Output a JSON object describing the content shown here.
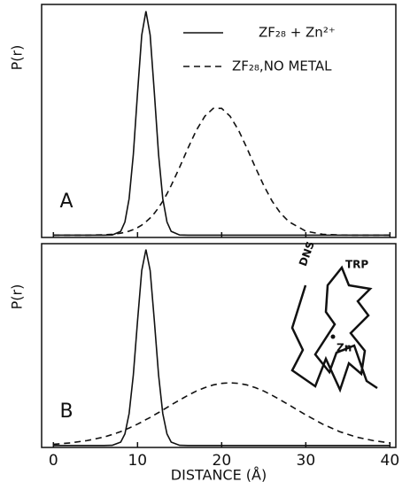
{
  "chart_data": [
    {
      "type": "line",
      "y_label": "P(r)",
      "panel_label": "A",
      "legend": "upper right",
      "x": [
        0,
        2,
        4,
        6,
        7,
        8,
        8.5,
        9,
        9.5,
        10,
        10.5,
        11,
        11.5,
        12,
        12.5,
        13,
        13.5,
        14,
        15,
        16,
        17,
        18,
        19,
        20,
        21,
        22,
        23,
        24,
        25,
        26,
        27,
        28,
        30,
        32,
        34,
        36,
        38,
        40
      ],
      "series": [
        {
          "name": "ZF₂₈ + Zn²⁺",
          "color": "#111111",
          "linestyle": "solid",
          "values": [
            0,
            0,
            0,
            0,
            0.001,
            0.017,
            0.059,
            0.163,
            0.36,
            0.635,
            0.893,
            1,
            0.893,
            0.635,
            0.36,
            0.163,
            0.059,
            0.017,
            0.001,
            0,
            0,
            0,
            0,
            0,
            0,
            0,
            0,
            0,
            0,
            0,
            0,
            0,
            0,
            0,
            0,
            0,
            0,
            0
          ]
        },
        {
          "name": "ZF₂₈,NO METAL",
          "color": "#111111",
          "linestyle": "dashed",
          "values": [
            0,
            0,
            0,
            0.002,
            0.004,
            0.009,
            0.013,
            0.018,
            0.025,
            0.034,
            0.045,
            0.06,
            0.077,
            0.098,
            0.123,
            0.152,
            0.185,
            0.222,
            0.303,
            0.389,
            0.469,
            0.531,
            0.566,
            0.566,
            0.531,
            0.469,
            0.389,
            0.303,
            0.222,
            0.152,
            0.098,
            0.06,
            0.018,
            0.004,
            0.001,
            0,
            0,
            0
          ]
        }
      ],
      "xlim": [
        -1.4,
        40.7
      ],
      "ylim": [
        -0.01,
        1.03
      ],
      "xticks": [
        0,
        10,
        20,
        30,
        40
      ]
    },
    {
      "type": "line",
      "y_label": "P(r)",
      "panel_label": "B",
      "x_label": "DISTANCE (Å)",
      "annotations": [
        "DNS",
        "TRP",
        "Zn"
      ],
      "x": [
        0,
        2,
        4,
        6,
        7,
        8,
        8.5,
        9,
        9.5,
        10,
        10.5,
        11,
        11.5,
        12,
        12.5,
        13,
        13.5,
        14,
        15,
        16,
        17,
        18,
        19,
        20,
        21,
        22,
        23,
        24,
        25,
        26,
        27,
        28,
        30,
        32,
        34,
        36,
        38,
        40
      ],
      "series": [
        {
          "color": "#111111",
          "linestyle": "solid",
          "values": [
            0,
            0,
            0,
            0,
            0.001,
            0.017,
            0.059,
            0.163,
            0.36,
            0.635,
            0.893,
            1,
            0.893,
            0.635,
            0.36,
            0.163,
            0.059,
            0.017,
            0.001,
            0,
            0,
            0,
            0,
            0,
            0,
            0,
            0,
            0,
            0,
            0,
            0,
            0,
            0,
            0,
            0,
            0,
            0,
            0
          ]
        },
        {
          "color": "#111111",
          "linestyle": "dashed",
          "values": [
            0.006,
            0.013,
            0.025,
            0.043,
            0.056,
            0.071,
            0.08,
            0.089,
            0.099,
            0.109,
            0.12,
            0.132,
            0.143,
            0.156,
            0.168,
            0.181,
            0.194,
            0.207,
            0.232,
            0.256,
            0.278,
            0.295,
            0.309,
            0.317,
            0.32,
            0.317,
            0.309,
            0.295,
            0.278,
            0.256,
            0.232,
            0.207,
            0.156,
            0.109,
            0.071,
            0.043,
            0.025,
            0.013
          ]
        }
      ],
      "xlim": [
        -1.4,
        40.7
      ],
      "ylim": [
        -0.01,
        1.03
      ],
      "xticks": [
        0,
        10,
        20,
        30,
        40
      ]
    }
  ]
}
